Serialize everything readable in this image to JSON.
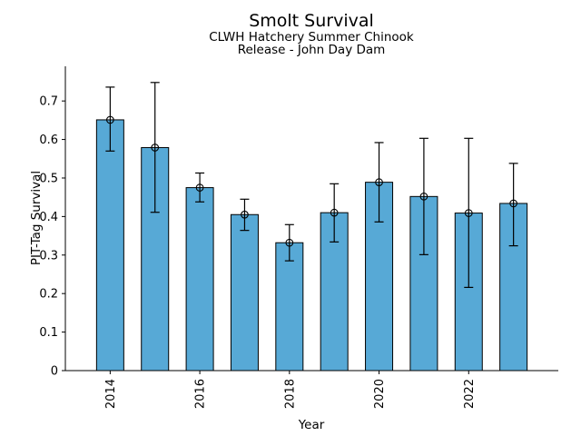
{
  "chart_data": {
    "type": "bar",
    "title": "Smolt Survival",
    "subtitle": [
      "CLWH Hatchery Summer Chinook",
      "Release - John Day Dam"
    ],
    "xlabel": "Year",
    "ylabel": "PIT-Tag Survival",
    "categories": [
      "2014",
      "2015",
      "2016",
      "2017",
      "2018",
      "2019",
      "2020",
      "2021",
      "2022",
      "2023"
    ],
    "values": [
      0.651,
      0.579,
      0.475,
      0.405,
      0.332,
      0.41,
      0.489,
      0.452,
      0.409,
      0.434
    ],
    "error_low": [
      0.57,
      0.411,
      0.438,
      0.364,
      0.285,
      0.334,
      0.386,
      0.301,
      0.216,
      0.324
    ],
    "error_high": [
      0.736,
      0.748,
      0.513,
      0.445,
      0.379,
      0.485,
      0.592,
      0.603,
      0.603,
      0.538
    ],
    "ylim": [
      0,
      0.79
    ],
    "yticks": [
      0,
      0.1,
      0.2,
      0.3,
      0.4,
      0.5,
      0.6,
      0.7
    ],
    "ytick_labels": [
      "0",
      "0.1",
      "0.2",
      "0.3",
      "0.4",
      "0.5",
      "0.6",
      "0.7"
    ],
    "xticks": [
      "2014",
      "2016",
      "2018",
      "2020",
      "2022"
    ],
    "grid": false,
    "legend": null,
    "marker": "open-circle",
    "error_bar_caps": true,
    "colors": {
      "bar_fill": "#57a9d6",
      "bar_edge": "#000000",
      "error_bar": "#000000",
      "text": "#000000",
      "background": "#ffffff"
    }
  }
}
